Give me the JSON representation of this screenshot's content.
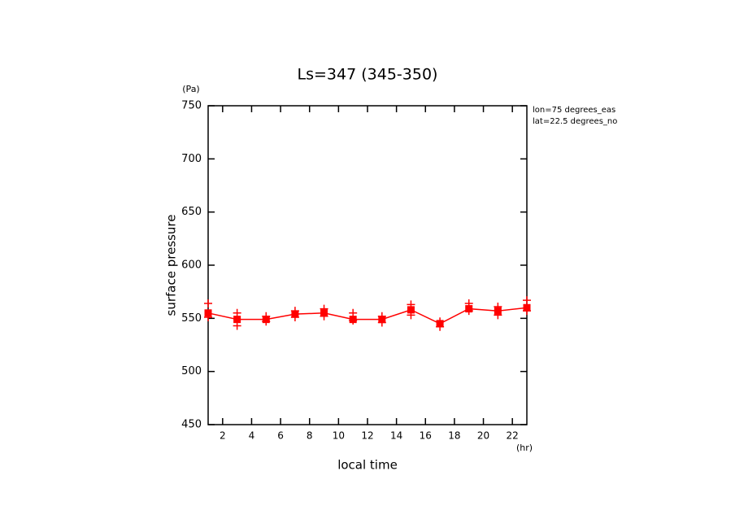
{
  "chart_data": {
    "type": "line",
    "title": "Ls=347 (345-350)",
    "x_label": "local time",
    "x_unit": "(hr)",
    "y_label": "surface pressure",
    "y_unit": "(Pa)",
    "annotations": [
      "lon=75 degrees_eas",
      "lat=22.5 degrees_no"
    ],
    "x": [
      1,
      3,
      5,
      7,
      9,
      11,
      13,
      15,
      17,
      19,
      21,
      23
    ],
    "series": [
      {
        "color": "#ff0000",
        "values": [
          555,
          549,
          549,
          554,
          555,
          549,
          549,
          558,
          545,
          559,
          557,
          560
        ],
        "upper": [
          564,
          555,
          552,
          557,
          559,
          555,
          552,
          563,
          547,
          564,
          561,
          567
        ],
        "lower": [
          551,
          543,
          547,
          551,
          552,
          548,
          546,
          553,
          542,
          557,
          553,
          557
        ]
      }
    ],
    "xlim": [
      1,
      23
    ],
    "xticks": [
      2,
      4,
      6,
      8,
      10,
      12,
      14,
      16,
      18,
      20,
      22
    ],
    "ylim": [
      450,
      750
    ],
    "yticks": [
      450,
      500,
      550,
      600,
      650,
      700,
      750
    ]
  }
}
